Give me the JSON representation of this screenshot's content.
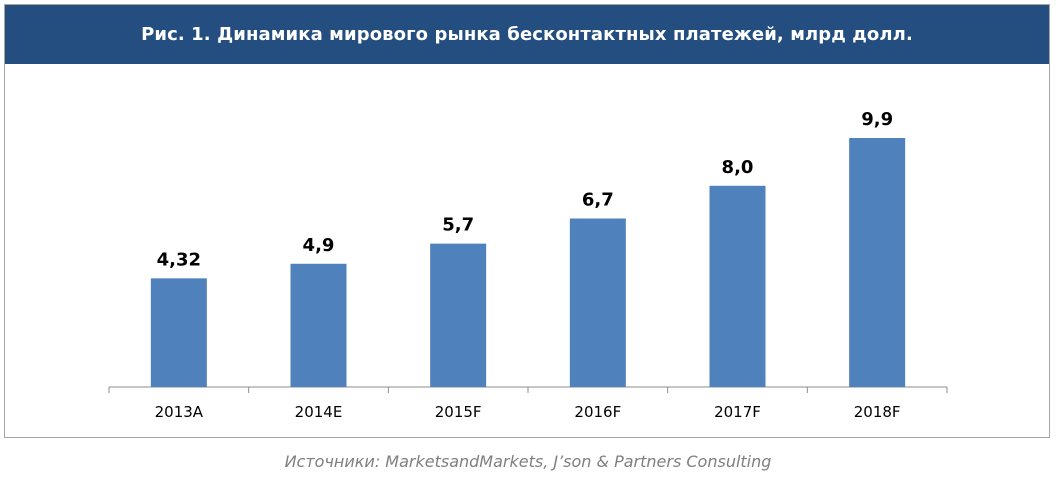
{
  "header": {
    "title": "Рис. 1. Динамика мирового рынка бесконтактных платежей, млрд долл."
  },
  "footer": {
    "source": "Источники: MarketsandMarkets, J’son & Partners Consulting"
  },
  "colors": {
    "title_bg": "#234e7f",
    "bar": "#4f81bd",
    "axis": "#8c8c8c"
  },
  "chart_data": {
    "type": "bar",
    "title": "Рис. 1. Динамика мирового рынка бесконтактных платежей, млрд долл.",
    "categories": [
      "2013A",
      "2014E",
      "2015F",
      "2016F",
      "2017F",
      "2018F"
    ],
    "values": [
      4.32,
      4.9,
      5.7,
      6.7,
      8.0,
      9.9
    ],
    "data_labels": [
      "4,32",
      "4,9",
      "5,7",
      "6,7",
      "8,0",
      "9,9"
    ],
    "xlabel": "",
    "ylabel": "",
    "ylim": [
      0,
      10
    ],
    "grid": false,
    "legend": "none"
  }
}
